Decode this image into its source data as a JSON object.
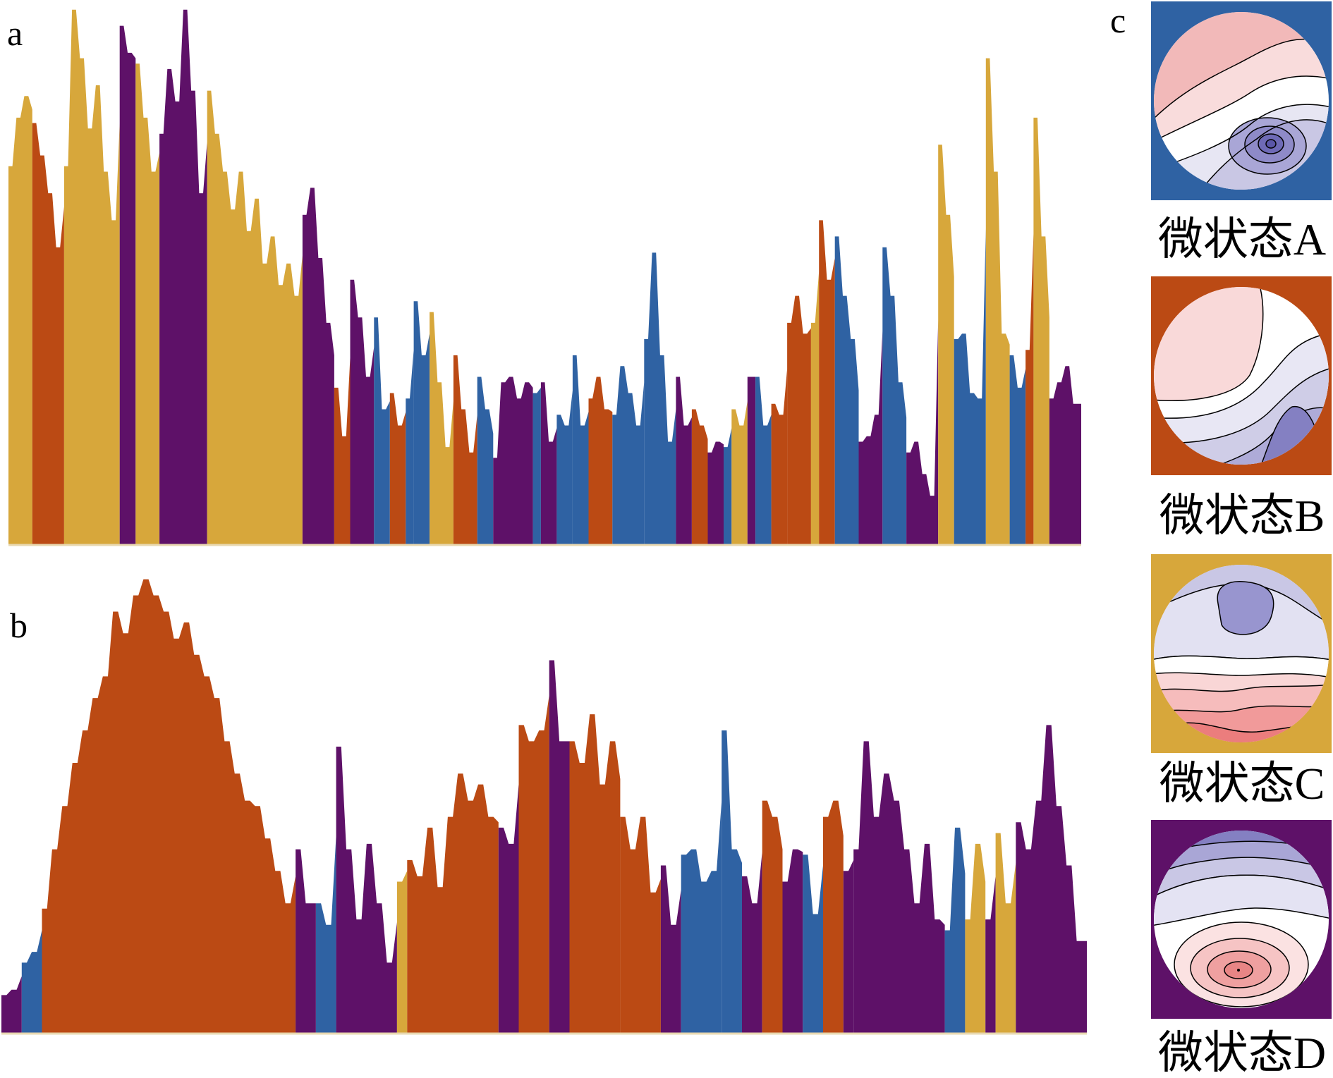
{
  "panel_labels": {
    "a": "a",
    "b": "b",
    "c": "c"
  },
  "state_colors": {
    "A": "#2f62a3",
    "B": "#bb4a14",
    "C": "#d7a73b",
    "D": "#5e1168"
  },
  "microstates": [
    {
      "id": "A",
      "label": "微状态A",
      "bg": "#2f62a3"
    },
    {
      "id": "B",
      "label": "微状态B",
      "bg": "#bb4a14"
    },
    {
      "id": "C",
      "label": "微状态C",
      "bg": "#d7a73b"
    },
    {
      "id": "D",
      "label": "微状态D",
      "bg": "#5e1168"
    }
  ],
  "chart_data": [
    {
      "panel": "a",
      "type": "area",
      "xlabel": "",
      "ylabel": "",
      "ylim": [
        0,
        100
      ],
      "grid": false,
      "segments": [
        {
          "state": "C",
          "values": [
            70,
            79,
            83
          ]
        },
        {
          "state": "B",
          "values": [
            78,
            72,
            65,
            55
          ]
        },
        {
          "state": "C",
          "values": [
            70,
            99,
            90,
            77,
            85,
            69,
            60
          ]
        },
        {
          "state": "D",
          "values": [
            96,
            91
          ]
        },
        {
          "state": "C",
          "values": [
            89,
            79,
            69
          ]
        },
        {
          "state": "D",
          "values": [
            76,
            88,
            82,
            99,
            84,
            65
          ]
        },
        {
          "state": "C",
          "values": [
            84,
            76,
            69,
            62,
            69,
            58,
            64,
            52,
            57,
            48,
            52,
            46
          ]
        },
        {
          "state": "D",
          "values": [
            61,
            66,
            53,
            41
          ]
        },
        {
          "state": "B",
          "values": [
            29,
            20
          ]
        },
        {
          "state": "D",
          "values": [
            49,
            42,
            31
          ]
        },
        {
          "state": "A",
          "values": [
            42,
            25
          ]
        },
        {
          "state": "B",
          "values": [
            28,
            22
          ]
        },
        {
          "state": "A",
          "values": [
            27
          ]
        },
        {
          "state": "A",
          "values": [
            45,
            35
          ]
        },
        {
          "state": "C",
          "values": [
            43,
            30,
            18
          ]
        },
        {
          "state": "B",
          "values": [
            35,
            25,
            17
          ]
        },
        {
          "state": "A",
          "values": [
            31,
            25
          ]
        },
        {
          "state": "D",
          "values": [
            16,
            30,
            31,
            27,
            30
          ]
        },
        {
          "state": "A",
          "values": [
            28
          ]
        },
        {
          "state": "D",
          "values": [
            30,
            19
          ]
        },
        {
          "state": "A",
          "values": [
            24,
            22
          ]
        },
        {
          "state": "A",
          "values": [
            35,
            22
          ]
        },
        {
          "state": "B",
          "values": [
            27,
            31,
            25
          ]
        },
        {
          "state": "A",
          "values": [
            24,
            33,
            28,
            22
          ]
        },
        {
          "state": "A",
          "values": [
            38,
            54,
            35,
            19
          ]
        },
        {
          "state": "D",
          "values": [
            31,
            22
          ]
        },
        {
          "state": "B",
          "values": [
            25,
            22
          ]
        },
        {
          "state": "D",
          "values": [
            17,
            19
          ]
        },
        {
          "state": "A",
          "values": [
            18
          ]
        },
        {
          "state": "C",
          "values": [
            25,
            22
          ]
        },
        {
          "state": "D",
          "values": [
            31
          ]
        },
        {
          "state": "A",
          "values": [
            31,
            22
          ]
        },
        {
          "state": "B",
          "values": [
            26,
            24
          ]
        },
        {
          "state": "B",
          "values": [
            41,
            46,
            39
          ]
        },
        {
          "state": "C",
          "values": [
            41
          ]
        },
        {
          "state": "B",
          "values": [
            60,
            49
          ]
        },
        {
          "state": "A",
          "values": [
            57,
            46,
            38
          ]
        },
        {
          "state": "D",
          "values": [
            19,
            20,
            24
          ]
        },
        {
          "state": "A",
          "values": [
            55,
            46,
            30
          ]
        },
        {
          "state": "D",
          "values": [
            17,
            19,
            13,
            9
          ]
        },
        {
          "state": "C",
          "values": [
            74,
            61
          ]
        },
        {
          "state": "A",
          "values": [
            38,
            39,
            28,
            27
          ]
        },
        {
          "state": "C",
          "values": [
            90,
            69,
            39
          ]
        },
        {
          "state": "A",
          "values": [
            35,
            29
          ]
        },
        {
          "state": "B",
          "values": [
            36
          ]
        },
        {
          "state": "C",
          "values": [
            79,
            57
          ]
        },
        {
          "state": "D",
          "values": [
            27,
            30,
            33,
            26
          ]
        }
      ]
    },
    {
      "panel": "b",
      "type": "area",
      "xlabel": "",
      "ylabel": "",
      "ylim": [
        0,
        100
      ],
      "grid": false,
      "segments": [
        {
          "state": "D",
          "values": [
            7,
            8
          ]
        },
        {
          "state": "A",
          "values": [
            13,
            15
          ]
        },
        {
          "state": "B",
          "values": [
            23,
            34,
            42,
            50,
            56,
            62,
            66,
            78,
            74,
            81,
            84,
            81,
            78,
            73,
            76,
            70,
            66,
            62,
            54,
            48,
            43,
            42,
            36,
            30,
            24
          ]
        },
        {
          "state": "D",
          "values": [
            34,
            24
          ]
        },
        {
          "state": "A",
          "values": [
            24,
            20
          ]
        },
        {
          "state": "D",
          "values": [
            53,
            34,
            21,
            35,
            24,
            13
          ]
        },
        {
          "state": "C",
          "values": [
            28
          ]
        },
        {
          "state": "B",
          "values": [
            32,
            29,
            38,
            27,
            40,
            48,
            43,
            46,
            40
          ]
        },
        {
          "state": "D",
          "values": [
            38,
            35
          ]
        },
        {
          "state": "B",
          "values": [
            57,
            54,
            56
          ]
        },
        {
          "state": "D",
          "values": [
            69,
            54
          ]
        },
        {
          "state": "B",
          "values": [
            54,
            50,
            59,
            46,
            54
          ]
        },
        {
          "state": "B",
          "values": [
            40,
            34,
            40,
            26
          ]
        },
        {
          "state": "D",
          "values": [
            31,
            20
          ]
        },
        {
          "state": "A",
          "values": [
            33,
            34,
            28,
            30
          ]
        },
        {
          "state": "A",
          "values": [
            56,
            34
          ]
        },
        {
          "state": "D",
          "values": [
            29,
            24
          ]
        },
        {
          "state": "B",
          "values": [
            43,
            40
          ]
        },
        {
          "state": "D",
          "values": [
            28,
            34
          ]
        },
        {
          "state": "A",
          "values": [
            33,
            22
          ]
        },
        {
          "state": "B",
          "values": [
            40,
            43
          ]
        },
        {
          "state": "D",
          "values": [
            30
          ]
        },
        {
          "state": "D",
          "values": [
            34,
            54,
            40,
            48,
            43,
            34,
            24,
            35,
            21
          ]
        },
        {
          "state": "A",
          "values": [
            19,
            38
          ]
        },
        {
          "state": "C",
          "values": [
            21,
            35
          ]
        },
        {
          "state": "D",
          "values": [
            21
          ]
        },
        {
          "state": "C",
          "values": [
            37,
            24
          ]
        },
        {
          "state": "D",
          "values": [
            39,
            34,
            43,
            57,
            42,
            31,
            17
          ]
        }
      ]
    }
  ]
}
